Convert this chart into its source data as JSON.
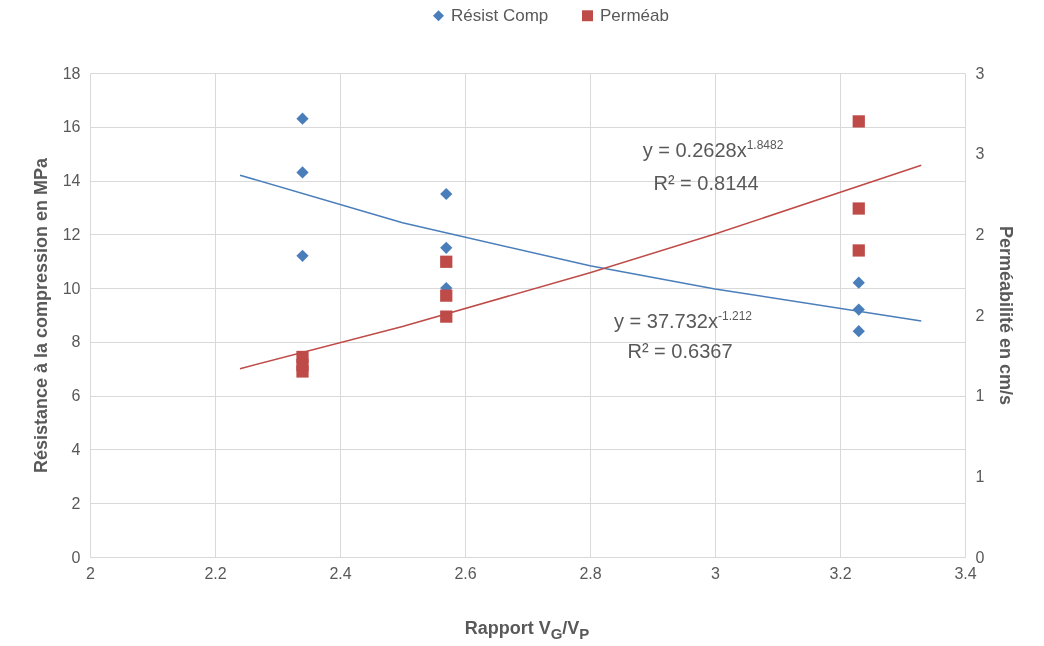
{
  "chart_data": {
    "type": "scatter",
    "xlabel": "Rapport V$_{G}$/V$_{P}$",
    "ylabel": "Résistance à la compression en MPa",
    "y2label": "Perméabilité en cm/s",
    "xlim": [
      2,
      3.4
    ],
    "xticks": [
      2,
      2.2,
      2.4,
      2.6,
      2.8,
      3,
      3.2,
      3.4
    ],
    "ylim": [
      0,
      18
    ],
    "yticks": [
      0,
      2,
      4,
      6,
      8,
      10,
      12,
      14,
      16,
      18
    ],
    "y2lim": [
      0,
      3
    ],
    "y2ticks": [
      0,
      {
        "value": 0.5,
        "label": "1"
      },
      1,
      {
        "value": 1.5,
        "label": "2"
      },
      2,
      {
        "value": 2.5,
        "label": "3"
      },
      3
    ],
    "grid": true,
    "legend": "top",
    "series": [
      {
        "name": "Résist Comp",
        "marker": "diamond",
        "color": "#4a7ebb",
        "x": [
          2.34,
          2.34,
          2.34,
          2.57,
          2.57,
          2.57,
          3.23,
          3.23,
          3.23
        ],
        "values": [
          16.3,
          14.3,
          11.2,
          13.5,
          11.5,
          10.0,
          10.2,
          9.2,
          8.4
        ]
      },
      {
        "name": "Perméab",
        "marker": "square",
        "color": "#be4b48",
        "axis": "y2",
        "x": [
          2.34,
          2.34,
          2.34,
          2.57,
          2.57,
          2.57,
          3.23,
          3.23,
          3.23
        ],
        "values": [
          1.24,
          1.19,
          1.15,
          1.83,
          1.62,
          1.49,
          2.7,
          2.16,
          1.9
        ]
      },
      {
        "type": "line",
        "color": "#4a7ebb",
        "x": [
          2.24,
          2.5,
          2.8,
          3.0,
          3.33
        ],
        "values": [
          14.2,
          12.43,
          10.83,
          9.97,
          8.78
        ]
      },
      {
        "type": "line",
        "color": "#be4b48",
        "axis": "y2",
        "x": [
          2.24,
          2.5,
          2.8,
          3.0,
          3.33
        ],
        "values": [
          1.167,
          1.429,
          1.762,
          2.002,
          2.428
        ]
      }
    ],
    "annotations": [
      "y = 0.2628x$^{1.8482}$",
      "R² = 0.8144",
      "y = 37.732x$^{-1.212}$",
      "R² = 0.6367"
    ]
  }
}
